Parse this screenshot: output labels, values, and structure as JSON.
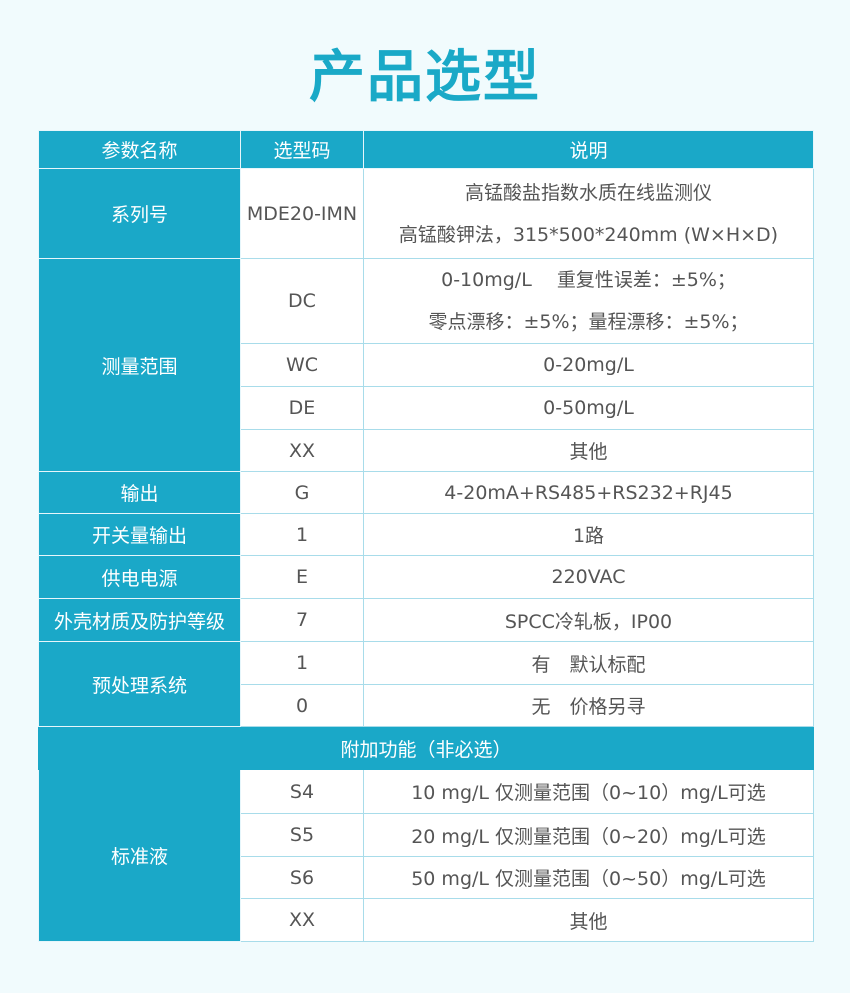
{
  "title": "产品选型",
  "columns": [
    "参数名称",
    "选型码",
    "说明"
  ],
  "series": {
    "label": "系列号",
    "code": "MDE20-IMN",
    "desc": [
      "高锰酸盐指数水质在线监测仪",
      "高锰酸钾法，315*500*240mm (W×H×D)"
    ]
  },
  "range": {
    "label": "测量范围",
    "rows": [
      {
        "code": "DC",
        "desc": [
          "0-10mg/L　 重复性误差：±5%；",
          "零点漂移：±5%；量程漂移：±5%；"
        ]
      },
      {
        "code": "WC",
        "desc": "0-20mg/L"
      },
      {
        "code": "DE",
        "desc": "0-50mg/L"
      },
      {
        "code": "XX",
        "desc": "其他"
      }
    ]
  },
  "output": {
    "label": "输出",
    "code": "G",
    "desc": "4-20mA+RS485+RS232+RJ45"
  },
  "switch": {
    "label": "开关量输出",
    "code": "1",
    "desc": "1路"
  },
  "power": {
    "label": "供电电源",
    "code": "E",
    "desc": "220VAC"
  },
  "housing": {
    "label": "外壳材质及防护等级",
    "code": "7",
    "desc": "SPCC冷轧板，IP00"
  },
  "pretreat": {
    "label": "预处理系统",
    "rows": [
      {
        "code": "1",
        "desc": "有　默认标配"
      },
      {
        "code": "0",
        "desc": "无　价格另寻"
      }
    ]
  },
  "addon": {
    "label": "附加功能（非必选）"
  },
  "standard": {
    "label": "标准液",
    "rows": [
      {
        "code": "S4",
        "desc": "10 mg/L  仅测量范围（0~10）mg/L可选"
      },
      {
        "code": "S5",
        "desc": "20 mg/L  仅测量范围（0~20）mg/L可选"
      },
      {
        "code": "S6",
        "desc": "50 mg/L  仅测量范围（0~50）mg/L可选"
      },
      {
        "code": "XX",
        "desc": "其他"
      }
    ]
  },
  "colors": {
    "accent": "#1aa8c8",
    "background": "#f1fbfd"
  }
}
